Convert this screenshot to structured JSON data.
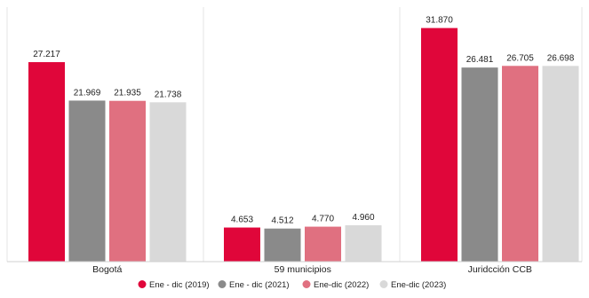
{
  "chart_data": {
    "type": "bar",
    "categories": [
      "Bogotá",
      "59 municipios",
      "Juridcción CCB"
    ],
    "series": [
      {
        "name": "Ene - dic (2019)",
        "color": "#E0063A",
        "values": [
          27217,
          4653,
          31870
        ],
        "labels": [
          "27.217",
          "4.653",
          "31.870"
        ]
      },
      {
        "name": "Ene - dic (2021)",
        "color": "#8A8A8A",
        "values": [
          21969,
          4512,
          26481
        ],
        "labels": [
          "21.969",
          "4.512",
          "26.481"
        ]
      },
      {
        "name": "Ene-dic (2022)",
        "color": "#E07080",
        "values": [
          21935,
          4770,
          26705
        ],
        "labels": [
          "21.935",
          "4.770",
          "26.705"
        ]
      },
      {
        "name": "Ene-dic (2023)",
        "color": "#D9D9D9",
        "values": [
          21738,
          4960,
          26698
        ],
        "labels": [
          "21.738",
          "4.960",
          "26.698"
        ]
      }
    ],
    "title": "",
    "xlabel": "",
    "ylabel": "",
    "ylim": [
      0,
      34000
    ],
    "grid": false,
    "legend": "bottom-center"
  }
}
